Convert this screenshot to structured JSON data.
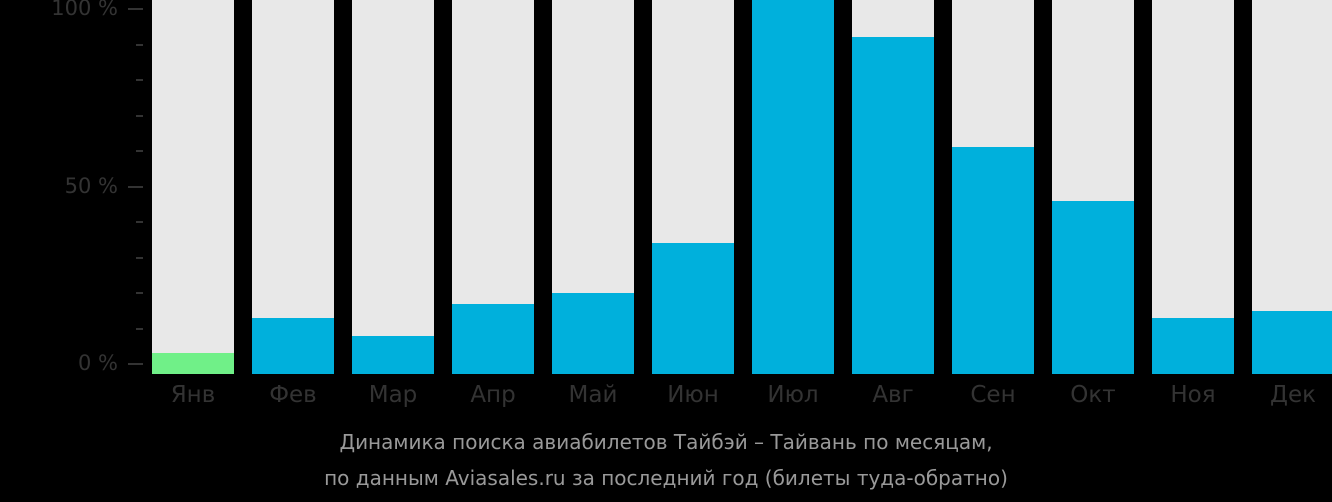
{
  "chart_data": {
    "type": "bar",
    "title": "Динамика поиска авиабилетов Тайбэй – Тайвань по месяцам,",
    "subtitle": "по данным Aviasales.ru за последний год (билеты туда-обратно)",
    "xlabel": "",
    "ylabel": "",
    "ylim": [
      0,
      100
    ],
    "y_ticks": [
      "0 %",
      "50 %",
      "100 %"
    ],
    "grid": false,
    "legend": null,
    "categories": [
      "Янв",
      "Фев",
      "Мар",
      "Апр",
      "Май",
      "Июн",
      "Июл",
      "Авг",
      "Сен",
      "Окт",
      "Ноя",
      "Дек"
    ],
    "values": [
      3,
      13,
      8,
      17,
      20,
      34,
      100,
      92,
      61,
      46,
      13,
      15
    ],
    "highlight_index": 0,
    "colors": {
      "bar": "#00b0dc",
      "highlight": "#70f088",
      "track": "#e8e8e8",
      "background": "#000000",
      "axis_text": "#333333",
      "caption_text": "#999999"
    }
  },
  "caption": {
    "line1": "Динамика поиска авиабилетов Тайбэй – Тайвань по месяцам,",
    "line2": "по данным Aviasales.ru за последний год (билеты туда-обратно)"
  },
  "axis": {
    "y100": "100 %",
    "y50": "50 %",
    "y0": "0 %"
  }
}
